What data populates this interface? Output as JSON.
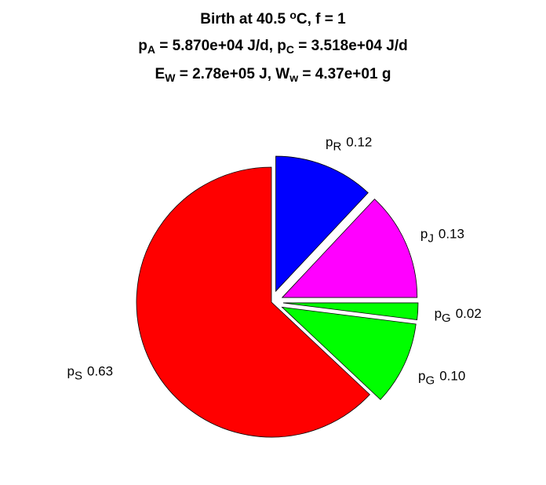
{
  "chart_data": {
    "type": "pie",
    "title": [
      [
        {
          "text": "Birth at 40.5 "
        },
        {
          "text": "o",
          "shift": "sup"
        },
        {
          "text": "C, f = 1"
        }
      ],
      [
        {
          "text": "p"
        },
        {
          "text": "A",
          "shift": "sub"
        },
        {
          "text": " = 5.870e+04 J/d, p"
        },
        {
          "text": "C",
          "shift": "sub"
        },
        {
          "text": " = 3.518e+04 J/d"
        }
      ],
      [
        {
          "text": "E"
        },
        {
          "text": "W",
          "shift": "sub"
        },
        {
          "text": " = 2.78e+05 J, W"
        },
        {
          "text": "w",
          "shift": "sub"
        },
        {
          "text": " = 4.37e+01 g"
        }
      ]
    ],
    "categories": [
      {
        "text": "p",
        "sub": "R"
      },
      {
        "text": "p",
        "sub": "J"
      },
      {
        "text": "p",
        "sub": "G"
      },
      {
        "text": "p",
        "sub": "G"
      },
      {
        "text": "p",
        "sub": "S"
      }
    ],
    "values": [
      0.12,
      0.13,
      0.02,
      0.1,
      0.63
    ],
    "value_labels": [
      "0.12",
      "0.13",
      "0.02",
      "0.10",
      "0.63"
    ],
    "colors": [
      "#0000ff",
      "#ff00ff",
      "#00ff00",
      "#00ff00",
      "#ff0000"
    ],
    "explode": [
      true,
      true,
      true,
      true,
      false
    ]
  }
}
